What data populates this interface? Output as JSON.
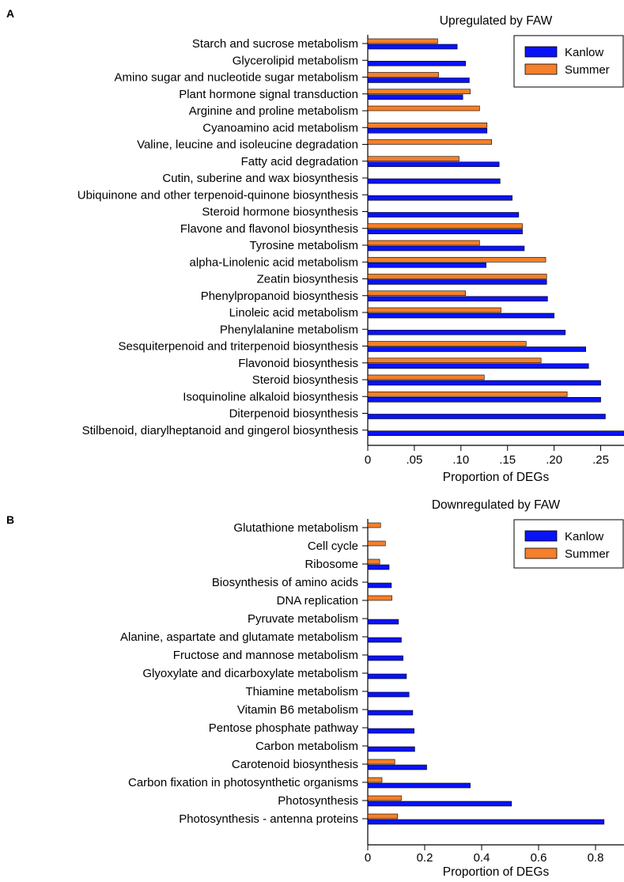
{
  "colors": {
    "kanlow": "#0a13f5",
    "summer": "#f57f2a"
  },
  "chart_data": [
    {
      "panel_label": "A",
      "type": "bar",
      "orientation": "horizontal",
      "title": "Upregulated by FAW",
      "xlabel": "Proportion of DEGs",
      "ylabel": "",
      "xlim": [
        0,
        0.275
      ],
      "xticks": [
        0,
        0.05,
        0.1,
        0.15,
        0.2,
        0.25
      ],
      "xtick_labels": [
        "0",
        ".05",
        ".10",
        ".15",
        ".20",
        ".25"
      ],
      "legend": {
        "position": "top-right",
        "entries": [
          "Kanlow",
          "Summer"
        ]
      },
      "categories": [
        "Starch and sucrose metabolism",
        "Glycerolipid metabolism",
        "Amino sugar and nucleotide sugar metabolism",
        "Plant hormone signal transduction",
        "Arginine and proline metabolism",
        "Cyanoamino acid metabolism",
        "Valine, leucine and isoleucine degradation",
        "Fatty acid degradation",
        "Cutin, suberine and wax biosynthesis",
        "Ubiquinone and other terpenoid-quinone biosynthesis",
        "Steroid hormone biosynthesis",
        "Flavone and flavonol biosynthesis",
        "Tyrosine metabolism",
        "alpha-Linolenic acid metabolism",
        "Zeatin biosynthesis",
        "Phenylpropanoid biosynthesis",
        "Linoleic acid metabolism",
        "Phenylalanine metabolism",
        "Sesquiterpenoid and triterpenoid biosynthesis",
        "Flavonoid biosynthesis",
        "Steroid biosynthesis",
        "Isoquinoline alkaloid biosynthesis",
        "Diterpenoid biosynthesis",
        "Stilbenoid, diarylheptanoid and gingerol biosynthesis"
      ],
      "series": [
        {
          "name": "Kanlow",
          "values": [
            0.096,
            0.105,
            0.109,
            0.102,
            null,
            0.128,
            null,
            0.141,
            0.142,
            0.155,
            0.162,
            0.166,
            0.168,
            0.127,
            0.192,
            0.193,
            0.2,
            0.212,
            0.234,
            0.237,
            0.25,
            0.25,
            0.255,
            0.275
          ]
        },
        {
          "name": "Summer",
          "values": [
            0.075,
            null,
            0.076,
            0.11,
            0.12,
            0.128,
            0.133,
            0.098,
            null,
            null,
            null,
            0.166,
            0.12,
            0.191,
            0.192,
            0.105,
            0.143,
            null,
            0.17,
            0.186,
            0.125,
            0.214,
            null,
            null
          ]
        }
      ]
    },
    {
      "panel_label": "B",
      "type": "bar",
      "orientation": "horizontal",
      "title": "Downregulated by FAW",
      "xlabel": "Proportion of DEGs",
      "ylabel": "",
      "xlim": [
        0,
        0.9
      ],
      "xticks": [
        0,
        0.2,
        0.4,
        0.6,
        0.8
      ],
      "xtick_labels": [
        "0",
        "0.2",
        "0.4",
        "0.6",
        "0.8"
      ],
      "legend": {
        "position": "top-right",
        "entries": [
          "Kanlow",
          "Summer"
        ]
      },
      "categories": [
        "Glutathione metabolism",
        "Cell cycle",
        "Ribosome",
        "Biosynthesis of amino acids",
        "DNA replication",
        "Pyruvate metabolism",
        "Alanine, aspartate and glutamate metabolism",
        "Fructose and mannose metabolism",
        "Glyoxylate and dicarboxylate metabolism",
        "Thiamine metabolism",
        "Vitamin B6 metabolism",
        "Pentose phosphate pathway",
        "Carbon metabolism",
        "Carotenoid biosynthesis",
        "Carbon fixation in photosynthetic organisms",
        "Photosynthesis",
        "Photosynthesis - antenna proteins"
      ],
      "series": [
        {
          "name": "Kanlow",
          "values": [
            null,
            null,
            0.075,
            0.083,
            null,
            0.108,
            0.118,
            0.124,
            0.136,
            0.145,
            0.158,
            0.163,
            0.165,
            0.207,
            0.36,
            0.505,
            0.83
          ]
        },
        {
          "name": "Summer",
          "values": [
            0.045,
            0.062,
            0.042,
            null,
            0.085,
            null,
            null,
            null,
            null,
            null,
            null,
            null,
            null,
            0.095,
            0.05,
            0.118,
            0.105
          ]
        }
      ]
    }
  ]
}
